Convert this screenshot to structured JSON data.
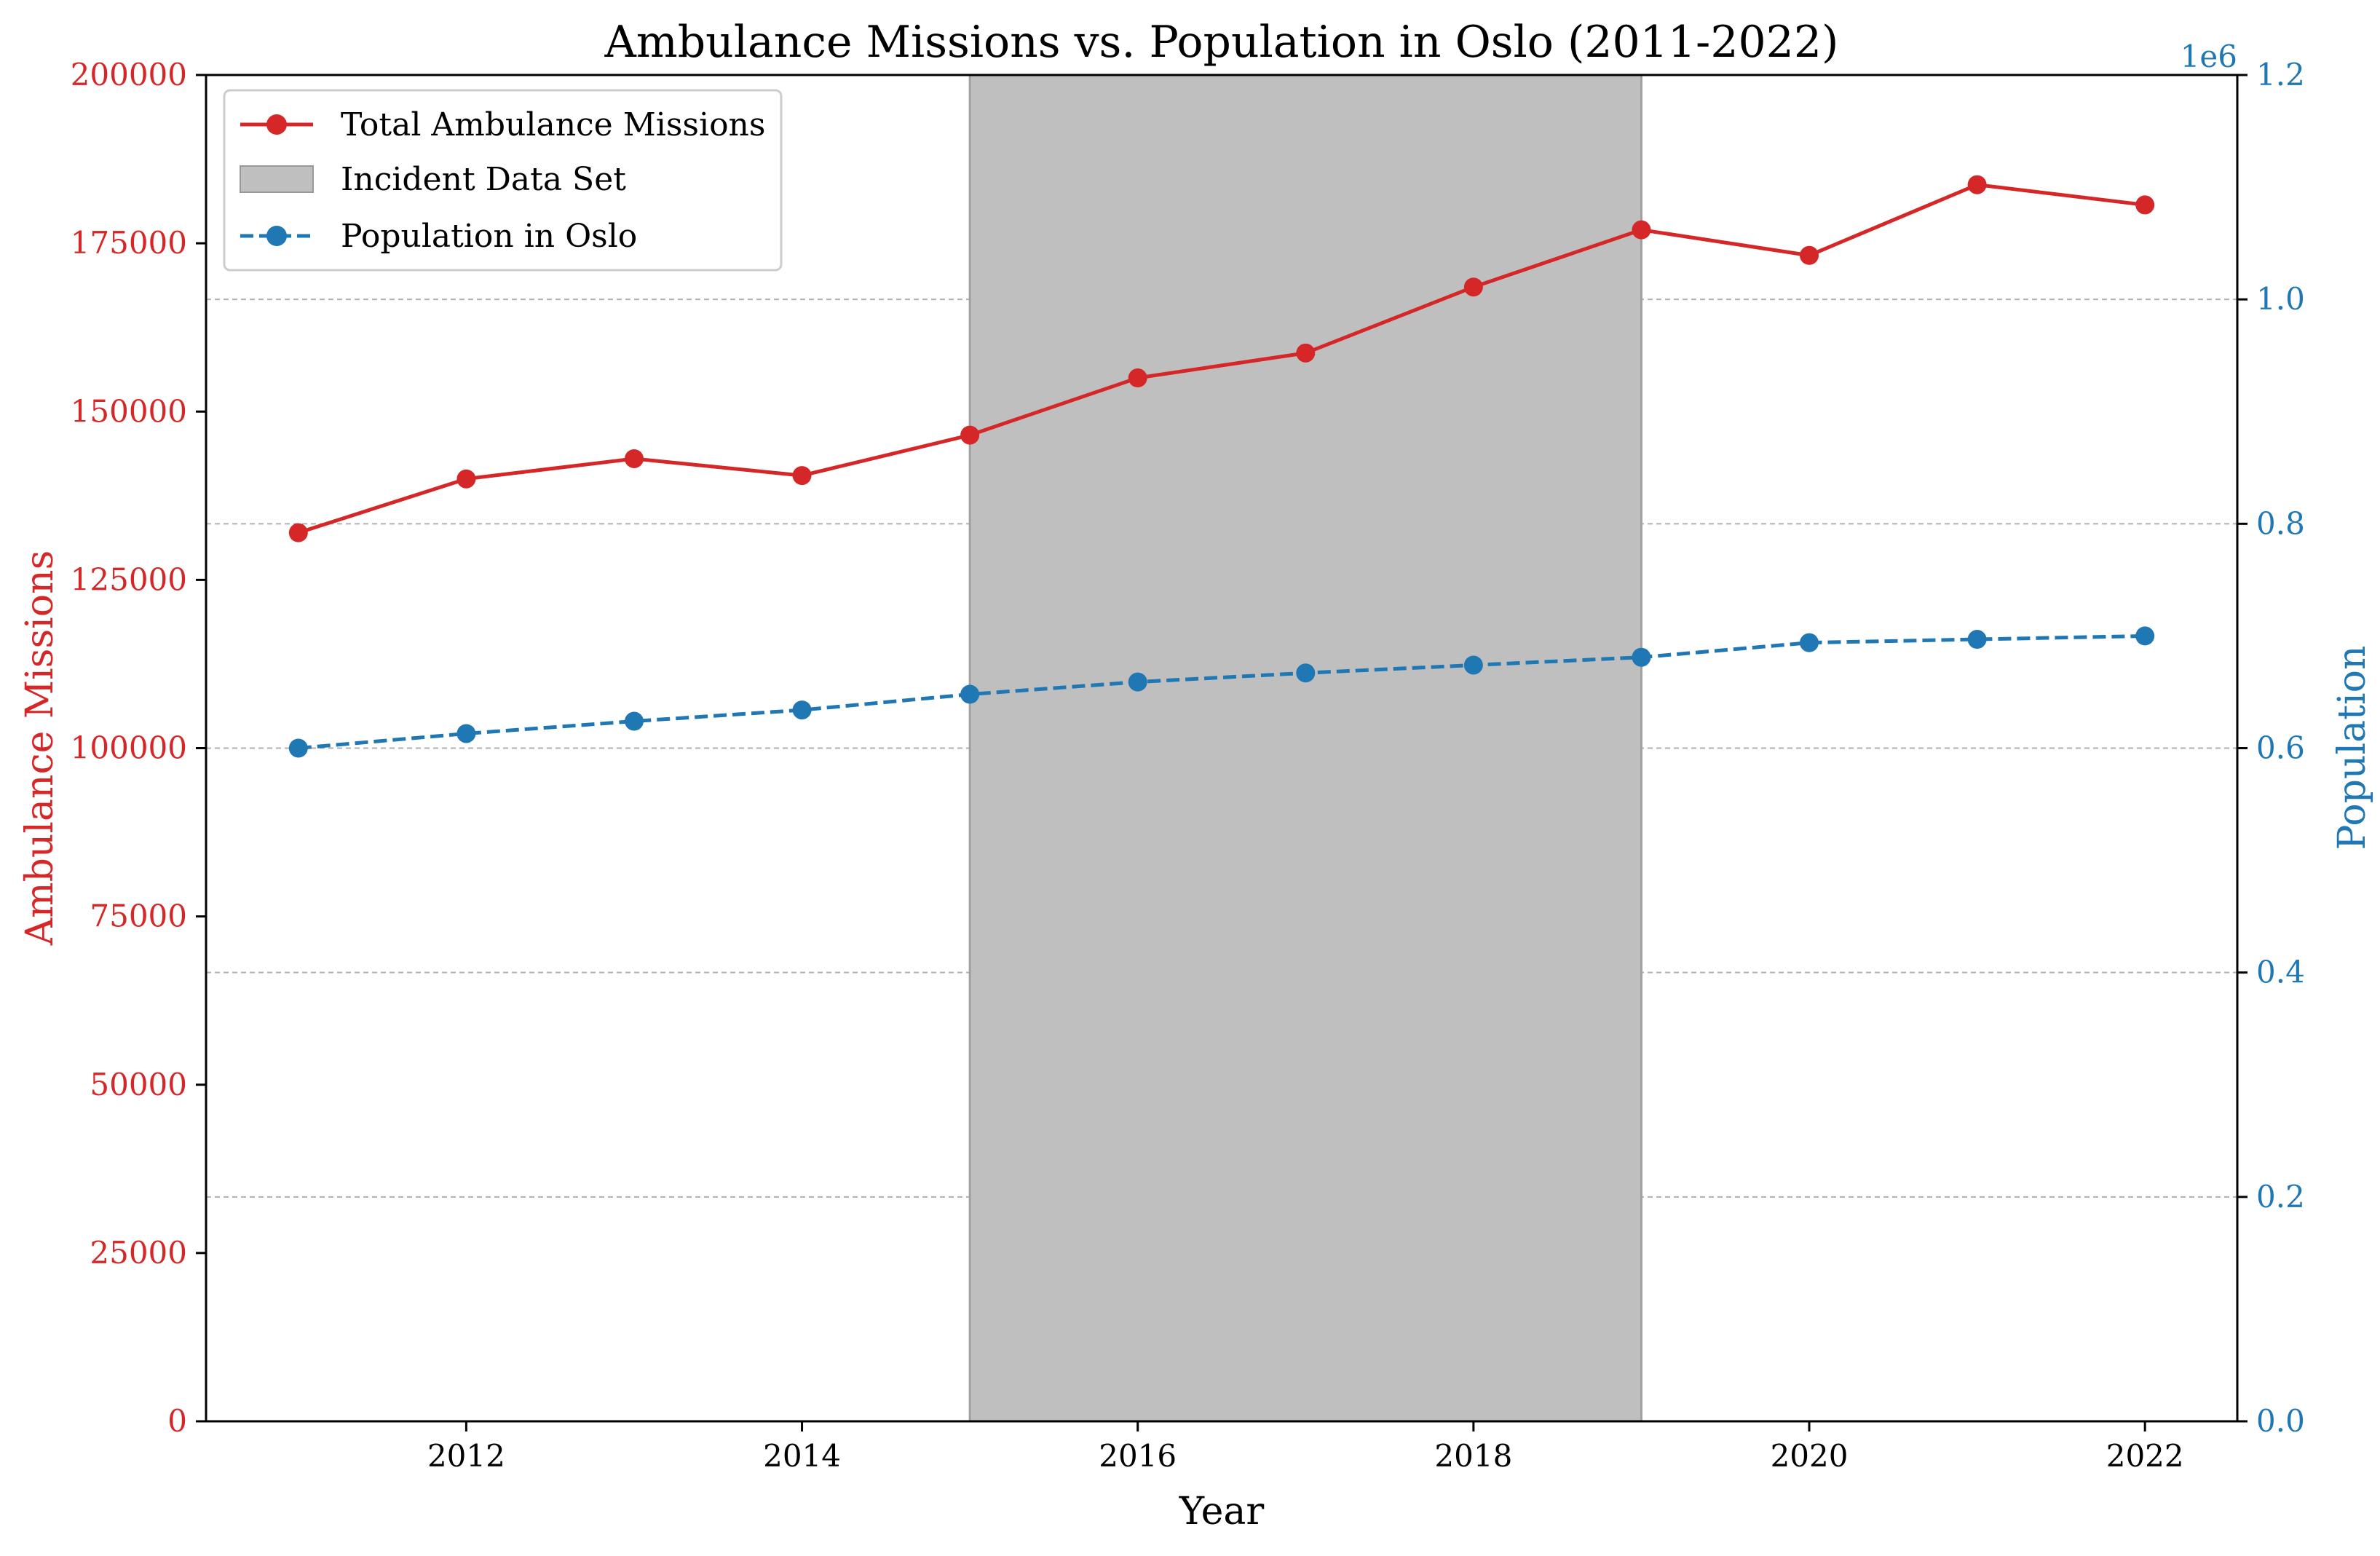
{
  "chart_data": {
    "type": "line",
    "title": "Ambulance Missions vs. Population in Oslo (2011-2022)",
    "xlabel": "Year",
    "ylabel_left": "Ambulance Missions",
    "ylabel_right": "Population",
    "right_axis_offset_text": "1e6",
    "xlim": [
      2010.45,
      2022.55
    ],
    "x_ticks": [
      2012,
      2014,
      2016,
      2018,
      2020,
      2022
    ],
    "ylim_left": [
      0,
      200000
    ],
    "y_ticks_left": [
      0,
      25000,
      50000,
      75000,
      100000,
      125000,
      150000,
      175000,
      200000
    ],
    "ylim_right": [
      0,
      1.2
    ],
    "y_ticks_right": [
      "0.0",
      "0.2",
      "0.4",
      "0.6",
      "0.8",
      "1.0",
      "1.2"
    ],
    "grid": "horizontal dashed on right axis ticks",
    "legend_position": "top-left",
    "x": [
      2011,
      2012,
      2013,
      2014,
      2015,
      2016,
      2017,
      2018,
      2019,
      2020,
      2021,
      2022
    ],
    "series": [
      {
        "name": "Total Ambulance Missions",
        "axis": "left",
        "color": "#d62728",
        "style": "solid",
        "values": [
          132000,
          140000,
          143000,
          140500,
          146500,
          155000,
          158700,
          168500,
          177000,
          173200,
          183700,
          180700
        ]
      },
      {
        "name": "Population in Oslo",
        "axis": "right",
        "color": "#1f77b4",
        "style": "dashed",
        "values": [
          0.6,
          0.613,
          0.624,
          0.634,
          0.648,
          0.659,
          0.667,
          0.674,
          0.681,
          0.694,
          0.697,
          0.7
        ]
      }
    ],
    "shaded_region": {
      "label": "Incident Data Set",
      "x_start": 2015,
      "x_end": 2019,
      "color": "#bfbfbf"
    },
    "colors": {
      "left_axis": "#d62728",
      "right_axis": "#1f77b4"
    }
  }
}
